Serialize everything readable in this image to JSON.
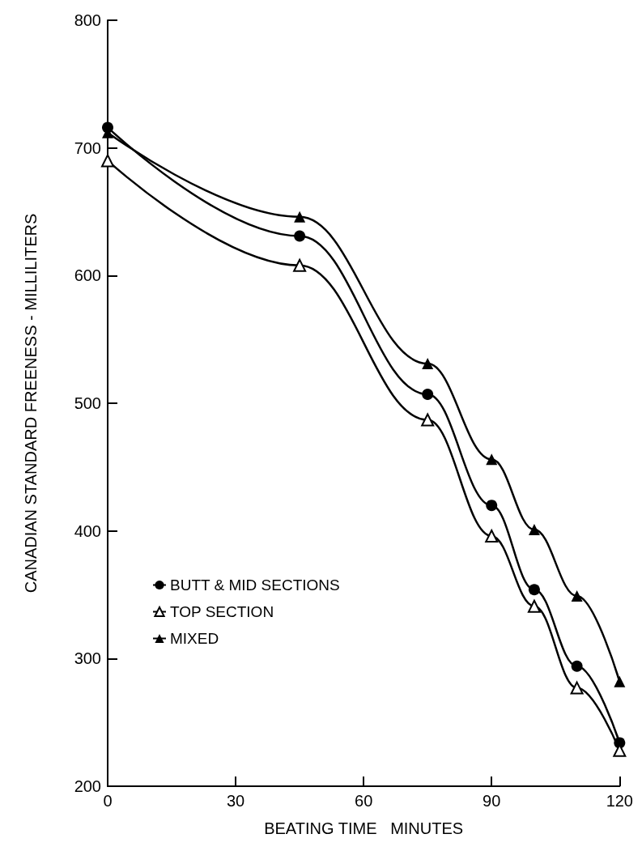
{
  "chart_data": {
    "type": "line",
    "xlabel": "BEATING TIME   MINUTES",
    "ylabel": "CANADIAN STANDARD FREENESS - MILLILITERS",
    "x": [
      0,
      45,
      75,
      90,
      100,
      110,
      120
    ],
    "series": [
      {
        "name": "BUTT & MID SECTIONS",
        "color": "#000000",
        "marker": "circle",
        "values": [
          716,
          631,
          507,
          420,
          354,
          294,
          234
        ]
      },
      {
        "name": "TOP SECTION",
        "color": "#000000",
        "marker": "triangle",
        "colors": [
          "#ffffff",
          "#ffffff",
          "#ffffff",
          "#ffffff",
          "#ffffff",
          "#ffffff",
          "#ffffff"
        ],
        "values": [
          690,
          608,
          487,
          396,
          341,
          277,
          228
        ]
      },
      {
        "name": "MIXED",
        "color": "#000000",
        "marker": "triangle",
        "values": [
          712,
          646,
          531,
          456,
          401,
          349,
          282
        ]
      }
    ],
    "xlim": [
      0,
      120
    ],
    "xticks": [
      0,
      30,
      60,
      90,
      120
    ],
    "ylim": [
      200,
      800
    ],
    "yticks": [
      200,
      300,
      400,
      500,
      600,
      700,
      800
    ],
    "grid": false,
    "legend": "left",
    "line_style": "solid"
  }
}
